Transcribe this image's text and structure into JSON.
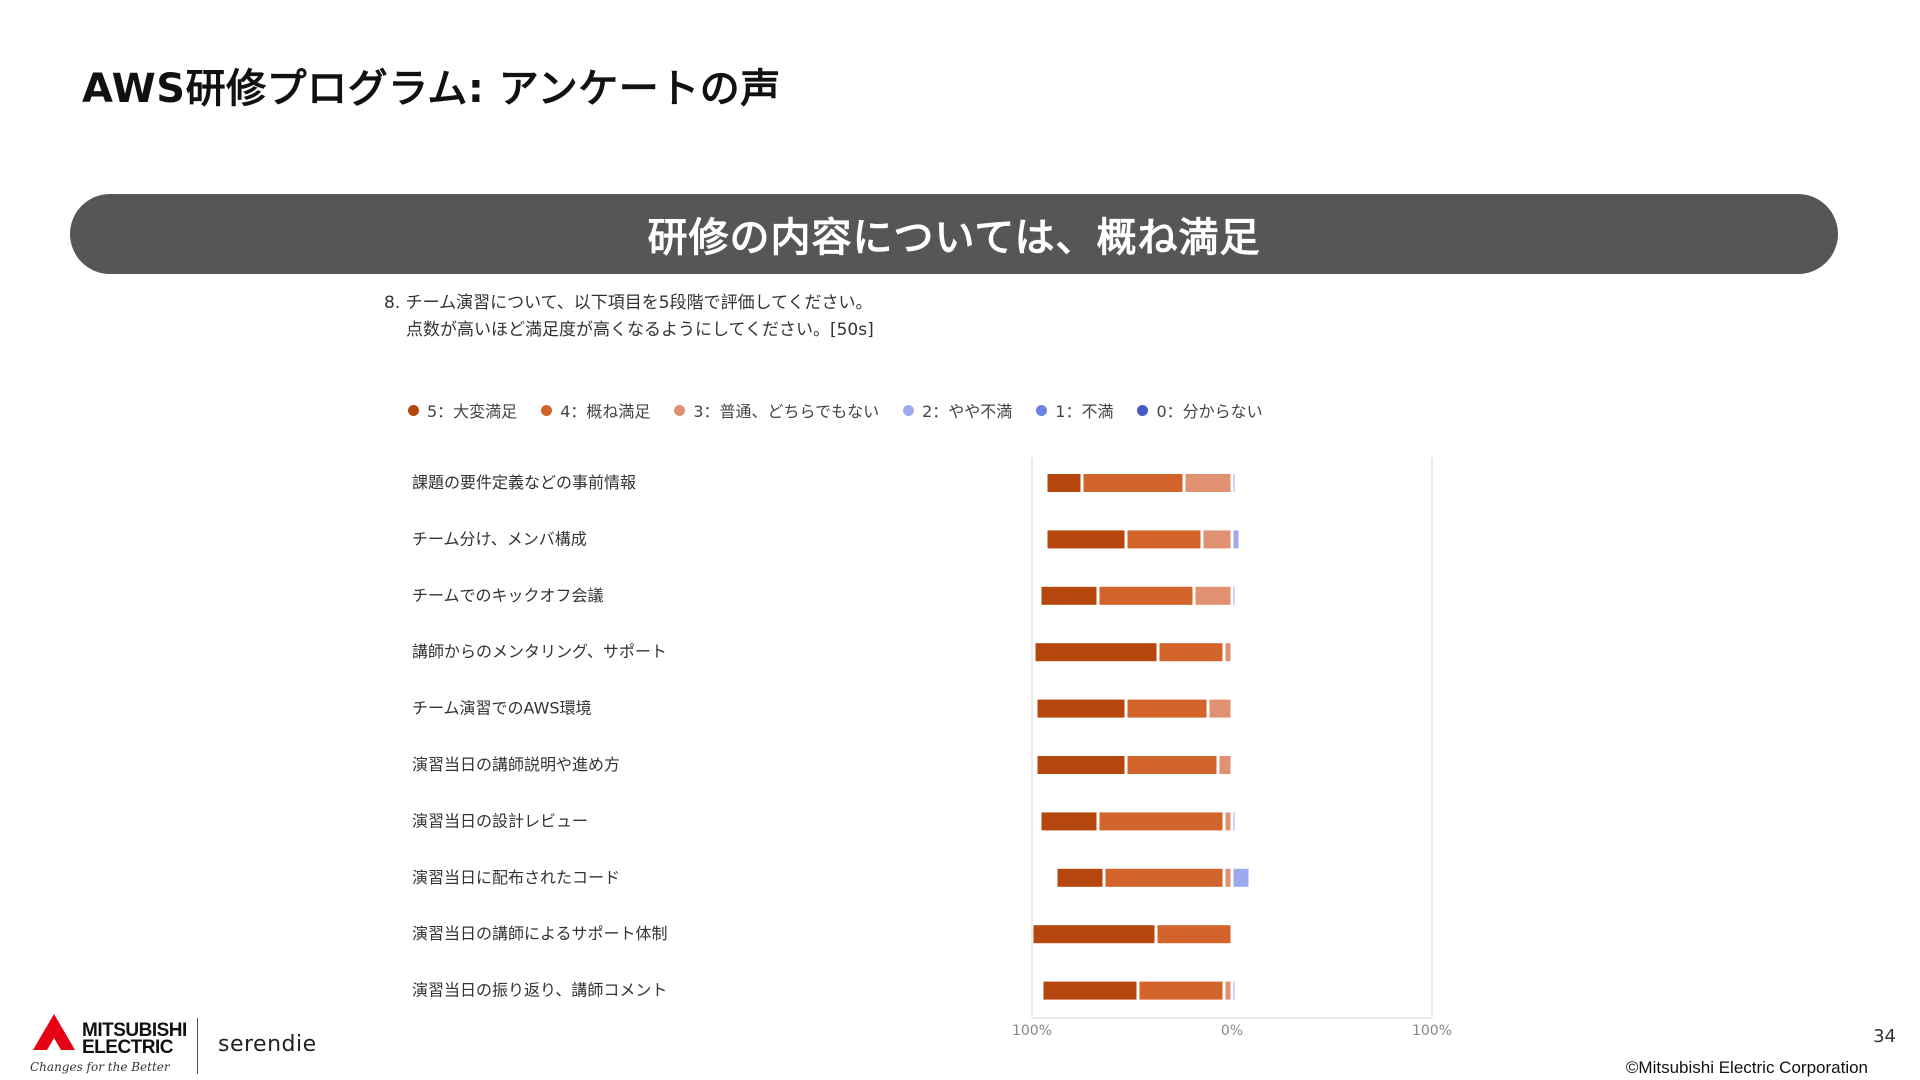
{
  "slide": {
    "title": "AWS研修プログラム: アンケートの声",
    "banner": "研修の内容については、概ね満足",
    "question_line1": "8. チーム演習について、以下項目を5段階で評価してください。",
    "question_line2": "点数が高いほど満足度が高くなるようにしてください。[50s]",
    "page_number": "34",
    "copyright": "©Mitsubishi Electric Corporation",
    "brand": {
      "name_line1": "MITSUBISHI",
      "name_line2": "ELECTRIC",
      "tagline": "Changes for the Better",
      "product": "serendie"
    }
  },
  "chart_data": {
    "type": "bar",
    "orientation": "horizontal",
    "stacked": "diverging",
    "categories": [
      "課題の要件定義などの事前情報",
      "チーム分け、メンバ構成",
      "チームでのキックオフ会議",
      "講師からのメンタリング、サポート",
      "チーム演習でのAWS環境",
      "演習当日の講師説明や進め方",
      "演習当日の設計レビュー",
      "演習当日に配布されたコード",
      "演習当日の講師によるサポート体制",
      "演習当日の振り返り、講師コメント"
    ],
    "series": [
      {
        "name": "5：大変満足",
        "color": "#B5470E",
        "side": "left",
        "values": [
          18,
          40,
          29,
          62,
          45,
          45,
          29,
          24,
          62,
          48
        ]
      },
      {
        "name": "4：概ね満足",
        "color": "#D2642B",
        "side": "left",
        "values": [
          51,
          38,
          48,
          33,
          41,
          46,
          63,
          60,
          38,
          43
        ]
      },
      {
        "name": "3：普通、どちらでもない",
        "color": "#E29072",
        "side": "left",
        "values": [
          24,
          15,
          19,
          4,
          12,
          7,
          4,
          4,
          0,
          4
        ]
      },
      {
        "name": "2：やや不満",
        "color": "#9DAAF0",
        "side": "right",
        "values": [
          2,
          4,
          2,
          0,
          0,
          0,
          2,
          9,
          0,
          2
        ]
      },
      {
        "name": "1：不満",
        "color": "#6B83E2",
        "side": "right",
        "values": [
          0,
          0,
          0,
          0,
          0,
          0,
          0,
          0,
          0,
          0
        ]
      },
      {
        "name": "0：分からない",
        "color": "#4658C8",
        "side": "right",
        "values": [
          0,
          0,
          0,
          0,
          0,
          0,
          0,
          0,
          0,
          0
        ]
      }
    ],
    "x_ticks": [
      "100%",
      "0%",
      "100%"
    ],
    "xlim": [
      -100,
      100
    ],
    "unit": "%",
    "legend_position": "top",
    "grid": false
  }
}
